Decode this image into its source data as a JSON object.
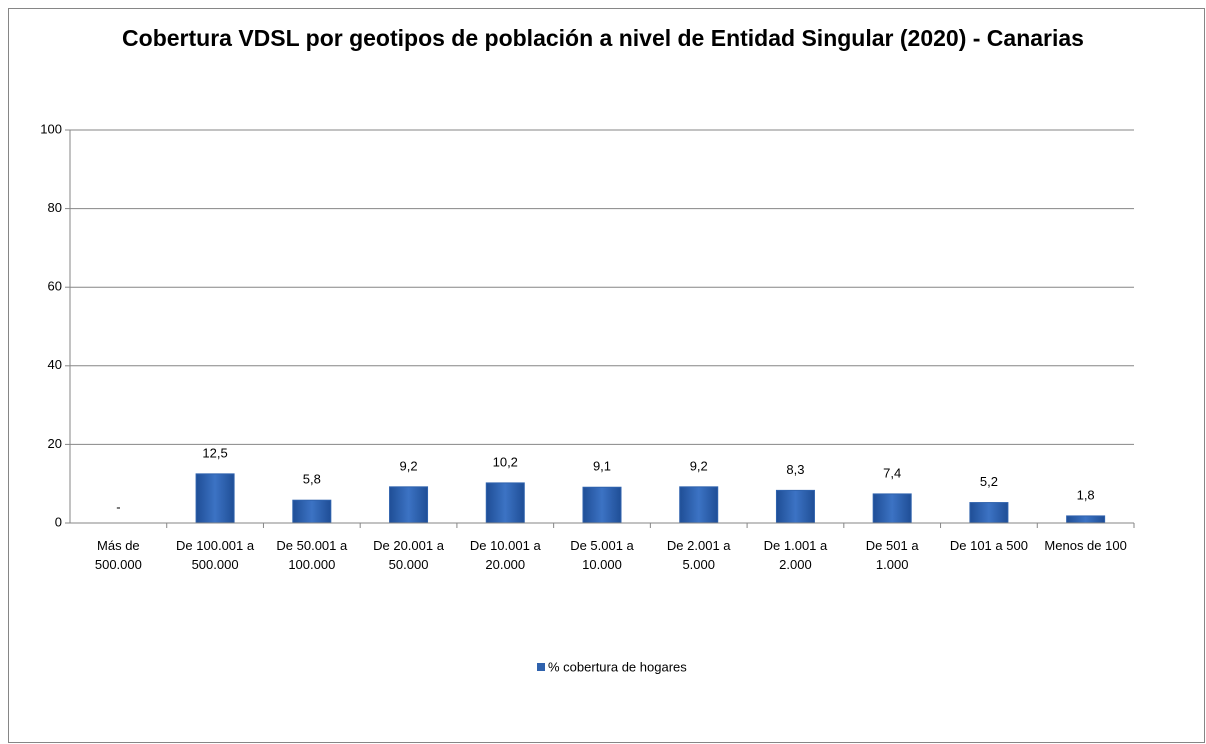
{
  "chart_data": {
    "type": "bar",
    "title": "Cobertura VDSL por geotipos de población a nivel de Entidad Singular (2020) - Canarias",
    "categories": [
      "Más de 500.000",
      "De 100.001 a 500.000",
      "De 50.001 a 100.000",
      "De 20.001 a 50.000",
      "De 10.001 a 20.000",
      "De 5.001 a 10.000",
      "De 2.001 a 5.000",
      "De 1.001 a 2.000",
      "De 501 a 1.000",
      "De 101 a 500",
      "Menos de 100"
    ],
    "series": [
      {
        "name": "% cobertura de hogares",
        "color": "#2f62ad",
        "values": [
          null,
          12.5,
          5.8,
          9.2,
          10.2,
          9.1,
          9.2,
          8.3,
          7.4,
          5.2,
          1.8
        ],
        "value_labels": [
          "-",
          "12,5",
          "5,8",
          "9,2",
          "10,2",
          "9,1",
          "9,2",
          "8,3",
          "7,4",
          "5,2",
          "1,8"
        ]
      }
    ],
    "ylim": [
      0,
      100
    ],
    "yticks": [
      0,
      20,
      40,
      60,
      80,
      100
    ],
    "grid": true,
    "legend": "bottom"
  }
}
